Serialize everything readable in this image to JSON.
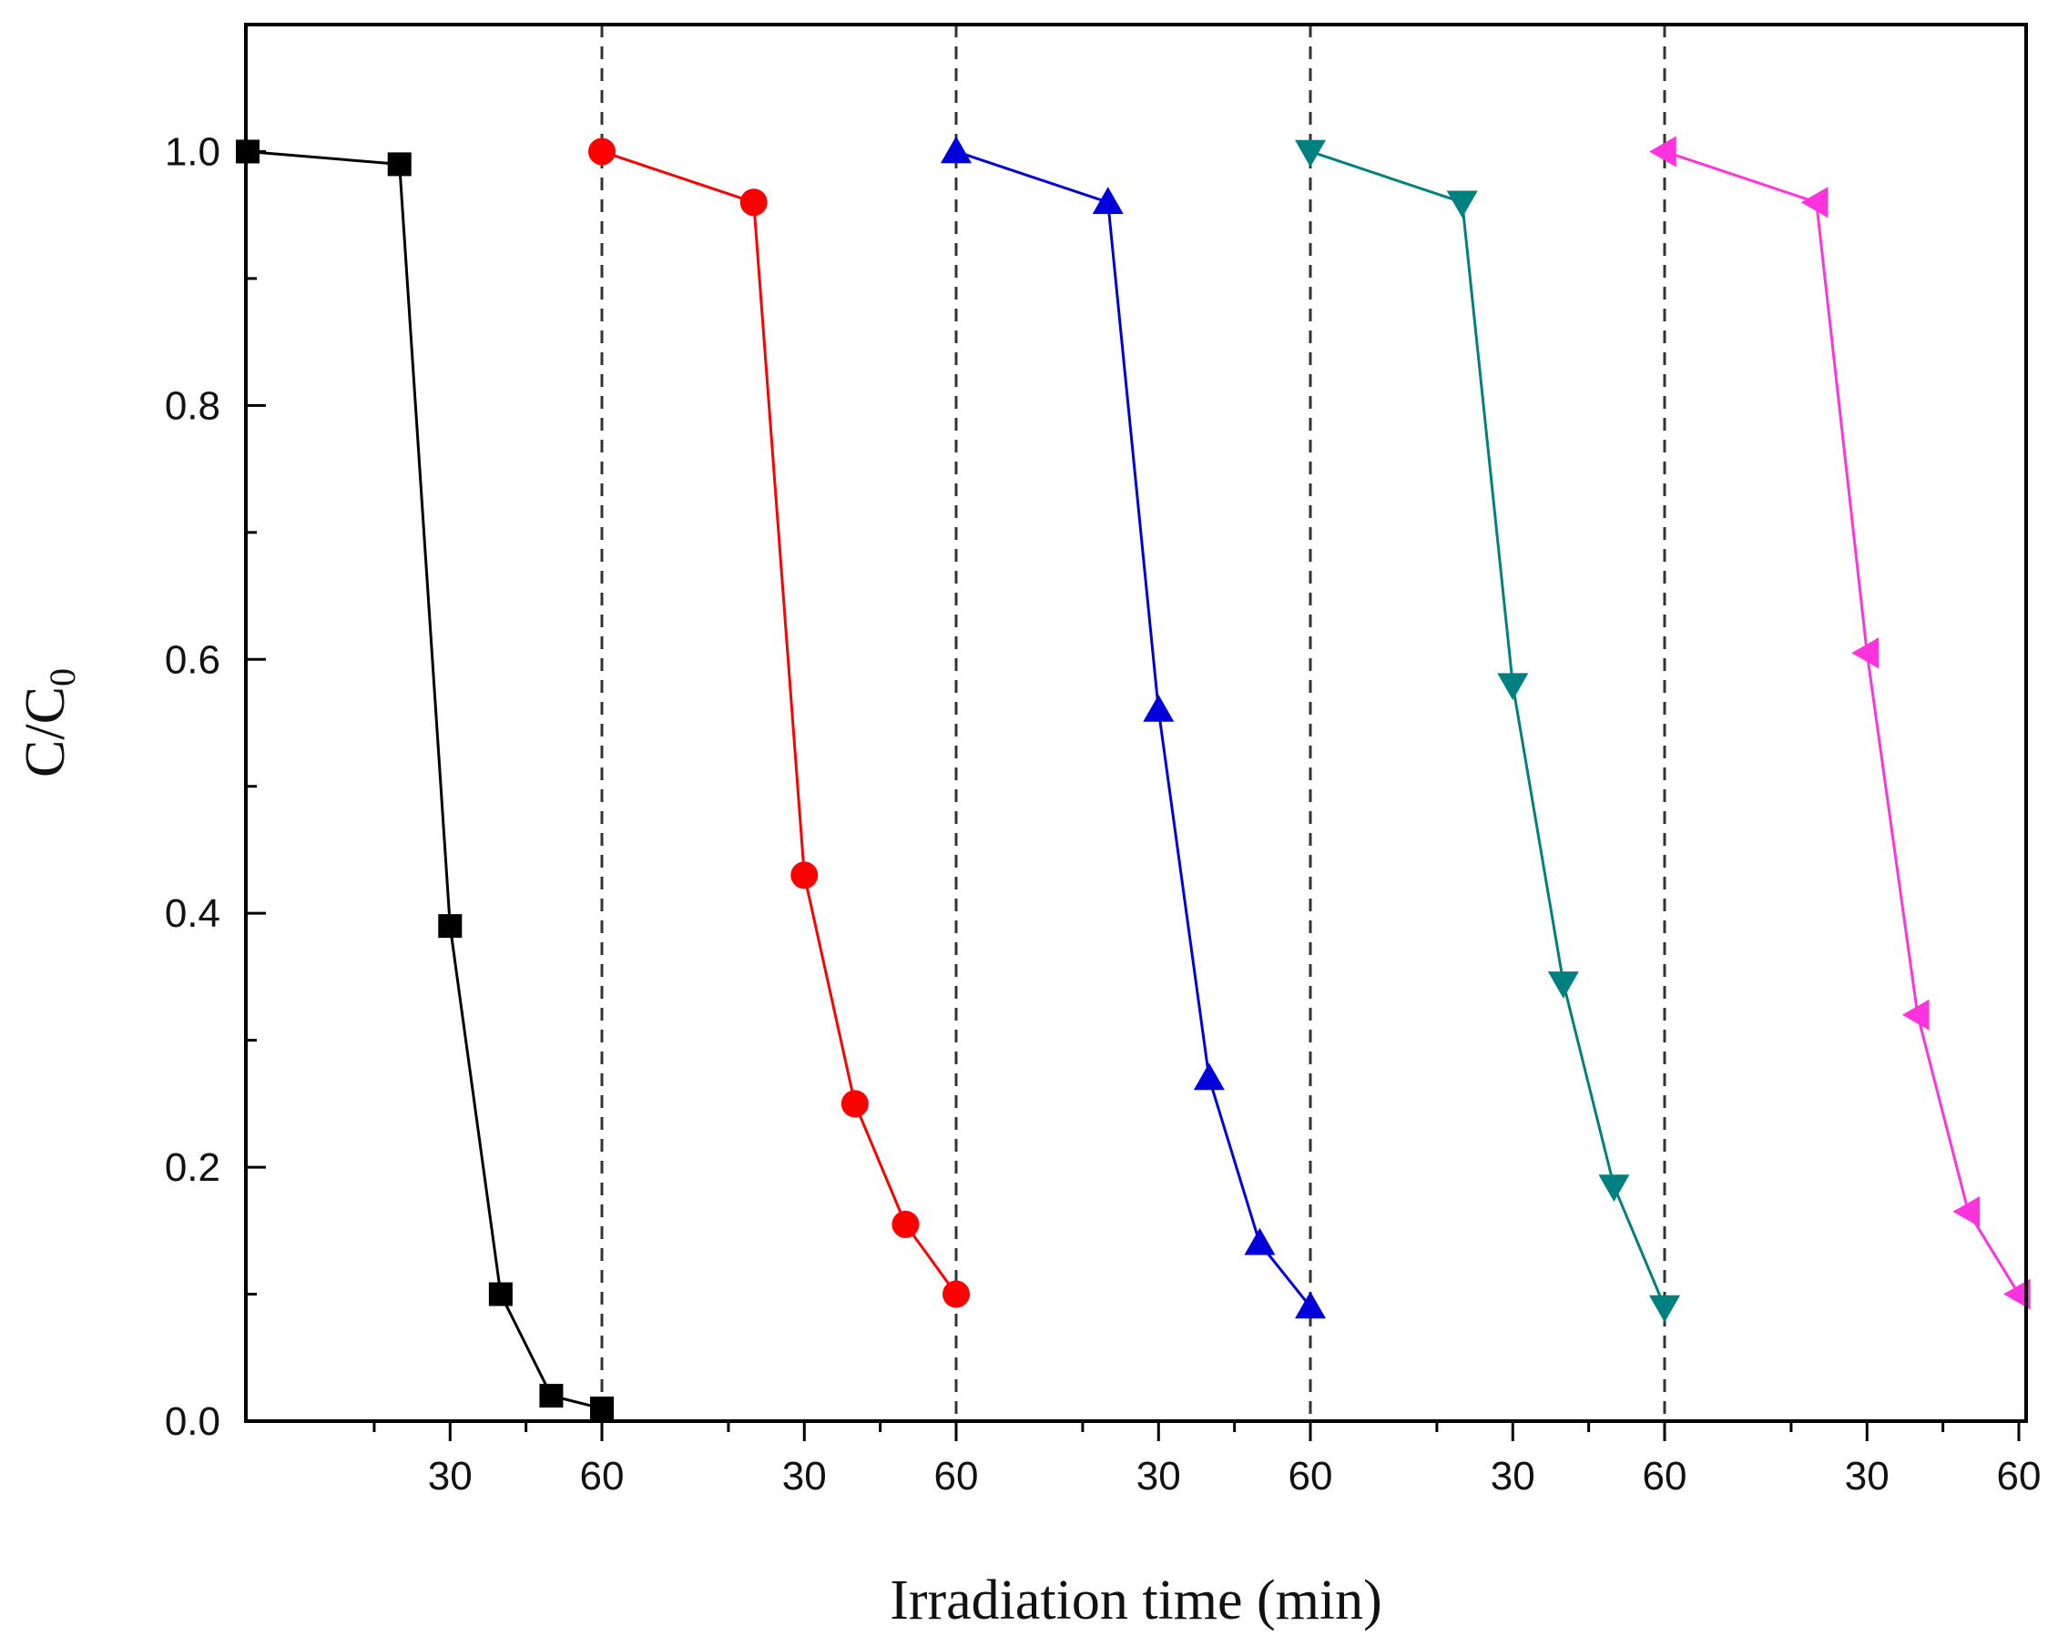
{
  "chart_data": {
    "type": "line",
    "xlabel": "Irradiation time (min)",
    "ylabel": {
      "main": "C/C",
      "subscript": "0"
    },
    "ylim": [
      0.0,
      1.1
    ],
    "x_segment_range_min": [
      -10,
      60
    ],
    "y_ticks": [
      "0.0",
      "0.2",
      "0.4",
      "0.6",
      "0.8",
      "1.0"
    ],
    "x_tick_labels": [
      "30",
      "60",
      "30",
      "60",
      "30",
      "60",
      "30",
      "60",
      "30",
      "60"
    ],
    "cycle_separators": "dashed vertical lines at the end of cycles 1-4",
    "grid": false,
    "legend": "none",
    "series": [
      {
        "cycle": 1,
        "color": "#000000",
        "marker": "square",
        "x": [
          -10,
          20,
          30,
          40,
          50,
          60
        ],
        "y": [
          1.0,
          0.99,
          0.39,
          0.1,
          0.02,
          0.01
        ]
      },
      {
        "cycle": 2,
        "color": "#ff0000",
        "marker": "circle",
        "x": [
          -10,
          20,
          30,
          40,
          50,
          60
        ],
        "y": [
          1.0,
          0.96,
          0.43,
          0.25,
          0.155,
          0.1
        ]
      },
      {
        "cycle": 3,
        "color": "#0000dd",
        "marker": "triangle-up",
        "x": [
          -10,
          20,
          30,
          40,
          50,
          60
        ],
        "y": [
          1.0,
          0.96,
          0.56,
          0.27,
          0.14,
          0.09
        ]
      },
      {
        "cycle": 4,
        "color": "#008080",
        "marker": "triangle-down",
        "x": [
          -10,
          20,
          30,
          40,
          50,
          60
        ],
        "y": [
          1.0,
          0.96,
          0.58,
          0.345,
          0.185,
          0.09
        ]
      },
      {
        "cycle": 5,
        "color": "#ff33dd",
        "marker": "triangle-left",
        "x": [
          -10,
          20,
          30,
          40,
          50,
          60
        ],
        "y": [
          1.0,
          0.96,
          0.605,
          0.32,
          0.165,
          0.1
        ]
      }
    ]
  }
}
